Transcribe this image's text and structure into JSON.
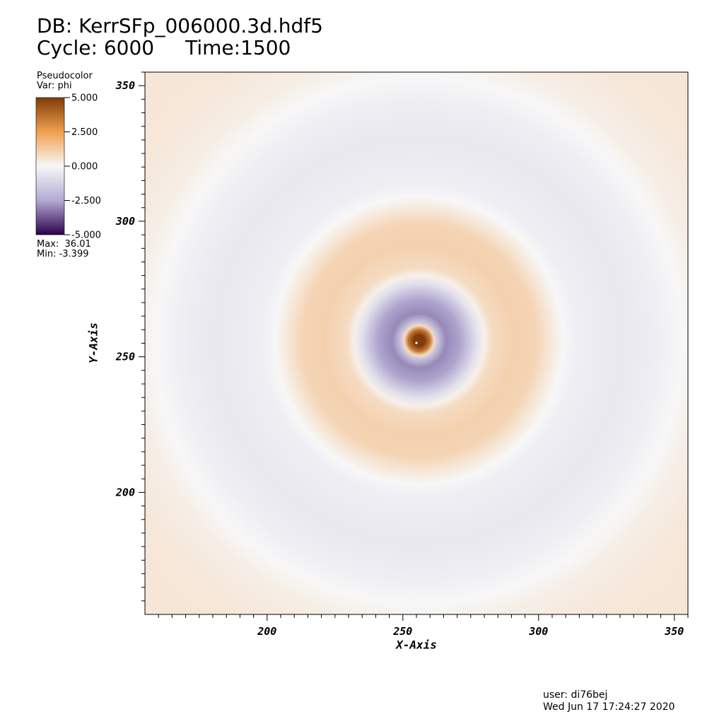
{
  "header": {
    "db_label": "DB: KerrSFp_006000.3d.hdf5",
    "cycle_label": "Cycle: 6000",
    "time_label": "Time:1500"
  },
  "legend": {
    "plot_type": "Pseudocolor",
    "var_label": "Var: phi",
    "ticks": [
      "5.000",
      "2.500",
      "0.000",
      "-2.500",
      "-5.000"
    ],
    "max_label": "Max:  36.01",
    "min_label": "Min: -3.399",
    "colors": {
      "top": "#7f3b08",
      "orange": "#f0a050",
      "mid": "#f7f7f7",
      "lavender": "#b2abd2",
      "bottom": "#2d004b"
    }
  },
  "footer": {
    "user": "user: di76bej",
    "date": "Wed Jun 17 17:24:27 2020"
  },
  "chart_data": {
    "type": "heatmap",
    "title": "Pseudocolor Var: phi",
    "xlabel": "X-Axis",
    "ylabel": "Y-Axis",
    "xlim": [
      155,
      355
    ],
    "ylim": [
      155,
      355
    ],
    "x_ticks": [
      200,
      250,
      300,
      350
    ],
    "y_ticks": [
      200,
      250,
      300,
      350
    ],
    "center": [
      256,
      256
    ],
    "colorbar_range": [
      -5,
      5
    ],
    "data_max": 36.01,
    "data_min": -3.399,
    "radial_profile": [
      {
        "r": 0,
        "phi": 36.01
      },
      {
        "r": 2,
        "phi": 6.5
      },
      {
        "r": 4,
        "phi": 3.5
      },
      {
        "r": 5.5,
        "phi": 0.8
      },
      {
        "r": 7,
        "phi": -1.8
      },
      {
        "r": 10,
        "phi": -3.0
      },
      {
        "r": 15,
        "phi": -2.6
      },
      {
        "r": 21,
        "phi": -0.8
      },
      {
        "r": 24,
        "phi": 0.2
      },
      {
        "r": 27,
        "phi": 0.8
      },
      {
        "r": 35,
        "phi": 1.1
      },
      {
        "r": 43,
        "phi": 1.0
      },
      {
        "r": 48,
        "phi": 0.5
      },
      {
        "r": 53,
        "phi": 0.0
      },
      {
        "r": 58,
        "phi": -0.3
      },
      {
        "r": 75,
        "phi": -0.5
      },
      {
        "r": 88,
        "phi": -0.3
      },
      {
        "r": 97,
        "phi": 0.0
      },
      {
        "r": 105,
        "phi": 0.25
      },
      {
        "r": 120,
        "phi": 0.45
      },
      {
        "r": 145,
        "phi": 0.5
      }
    ]
  }
}
